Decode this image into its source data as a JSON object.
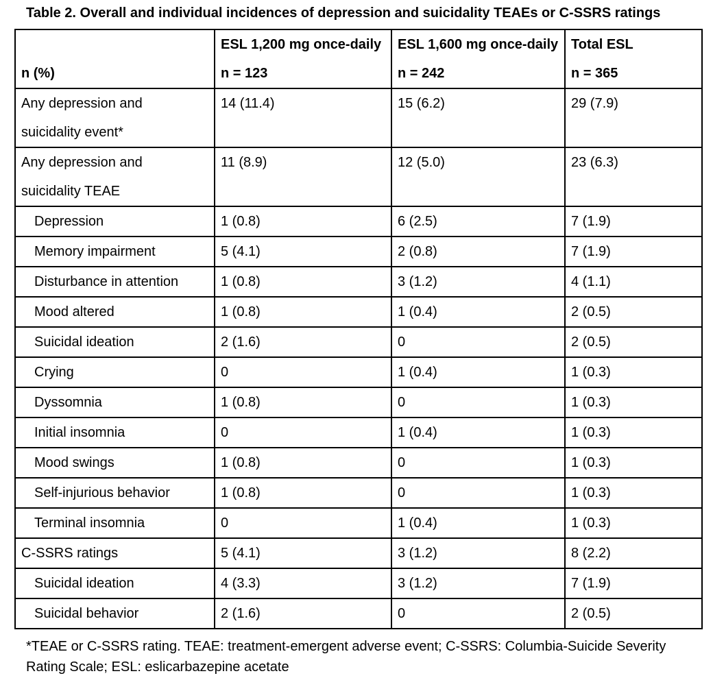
{
  "title": "Table 2. Overall and individual incidences of depression and suicidality TEAEs or C-SSRS ratings",
  "table": {
    "header_cells": [
      {
        "line1": "",
        "line2": "n (%)"
      },
      {
        "line1": "ESL 1,200 mg once-daily",
        "line2": "n = 123"
      },
      {
        "line1": "ESL 1,600 mg once-daily",
        "line2": "n = 242"
      },
      {
        "line1": "Total ESL",
        "line2": "n = 365"
      }
    ],
    "rows": [
      {
        "label_lines": [
          "Any depression and",
          "suicidality event*"
        ],
        "indent": false,
        "values": [
          "14 (11.4)",
          "15 (6.2)",
          "29 (7.9)"
        ]
      },
      {
        "label_lines": [
          "Any depression and",
          "suicidality TEAE"
        ],
        "indent": false,
        "values": [
          "11 (8.9)",
          "12 (5.0)",
          "23 (6.3)"
        ]
      },
      {
        "label_lines": [
          "Depression"
        ],
        "indent": true,
        "values": [
          "1 (0.8)",
          "6 (2.5)",
          "7 (1.9)"
        ]
      },
      {
        "label_lines": [
          "Memory impairment"
        ],
        "indent": true,
        "values": [
          "5 (4.1)",
          "2 (0.8)",
          "7 (1.9)"
        ]
      },
      {
        "label_lines": [
          "Disturbance in attention"
        ],
        "indent": true,
        "values": [
          "1 (0.8)",
          "3 (1.2)",
          "4 (1.1)"
        ]
      },
      {
        "label_lines": [
          "Mood altered"
        ],
        "indent": true,
        "values": [
          "1 (0.8)",
          "1 (0.4)",
          "2 (0.5)"
        ]
      },
      {
        "label_lines": [
          "Suicidal ideation"
        ],
        "indent": true,
        "values": [
          "2 (1.6)",
          "0",
          "2 (0.5)"
        ]
      },
      {
        "label_lines": [
          "Crying"
        ],
        "indent": true,
        "values": [
          "0",
          "1 (0.4)",
          "1 (0.3)"
        ]
      },
      {
        "label_lines": [
          "Dyssomnia"
        ],
        "indent": true,
        "values": [
          "1 (0.8)",
          "0",
          "1 (0.3)"
        ]
      },
      {
        "label_lines": [
          "Initial insomnia"
        ],
        "indent": true,
        "values": [
          "0",
          "1 (0.4)",
          "1 (0.3)"
        ]
      },
      {
        "label_lines": [
          "Mood swings"
        ],
        "indent": true,
        "values": [
          "1 (0.8)",
          "0",
          "1 (0.3)"
        ]
      },
      {
        "label_lines": [
          "Self-injurious behavior"
        ],
        "indent": true,
        "values": [
          "1 (0.8)",
          "0",
          "1 (0.3)"
        ]
      },
      {
        "label_lines": [
          "Terminal insomnia"
        ],
        "indent": true,
        "values": [
          "0",
          "1 (0.4)",
          "1 (0.3)"
        ]
      },
      {
        "label_lines": [
          "C-SSRS ratings"
        ],
        "indent": false,
        "values": [
          "5 (4.1)",
          "3 (1.2)",
          "8 (2.2)"
        ]
      },
      {
        "label_lines": [
          "Suicidal ideation"
        ],
        "indent": true,
        "values": [
          "4 (3.3)",
          "3 (1.2)",
          "7 (1.9)"
        ]
      },
      {
        "label_lines": [
          "Suicidal behavior"
        ],
        "indent": true,
        "values": [
          "2 (1.6)",
          "0",
          "2 (0.5)"
        ]
      }
    ]
  },
  "footnote_lines": [
    "*TEAE or C-SSRS rating. TEAE: treatment-emergent adverse event; C-SSRS: Columbia-Suicide Severity",
    "Rating Scale; ESL: eslicarbazepine acetate"
  ],
  "colors": {
    "text": "#000000",
    "border": "#000000",
    "background": "#ffffff"
  }
}
